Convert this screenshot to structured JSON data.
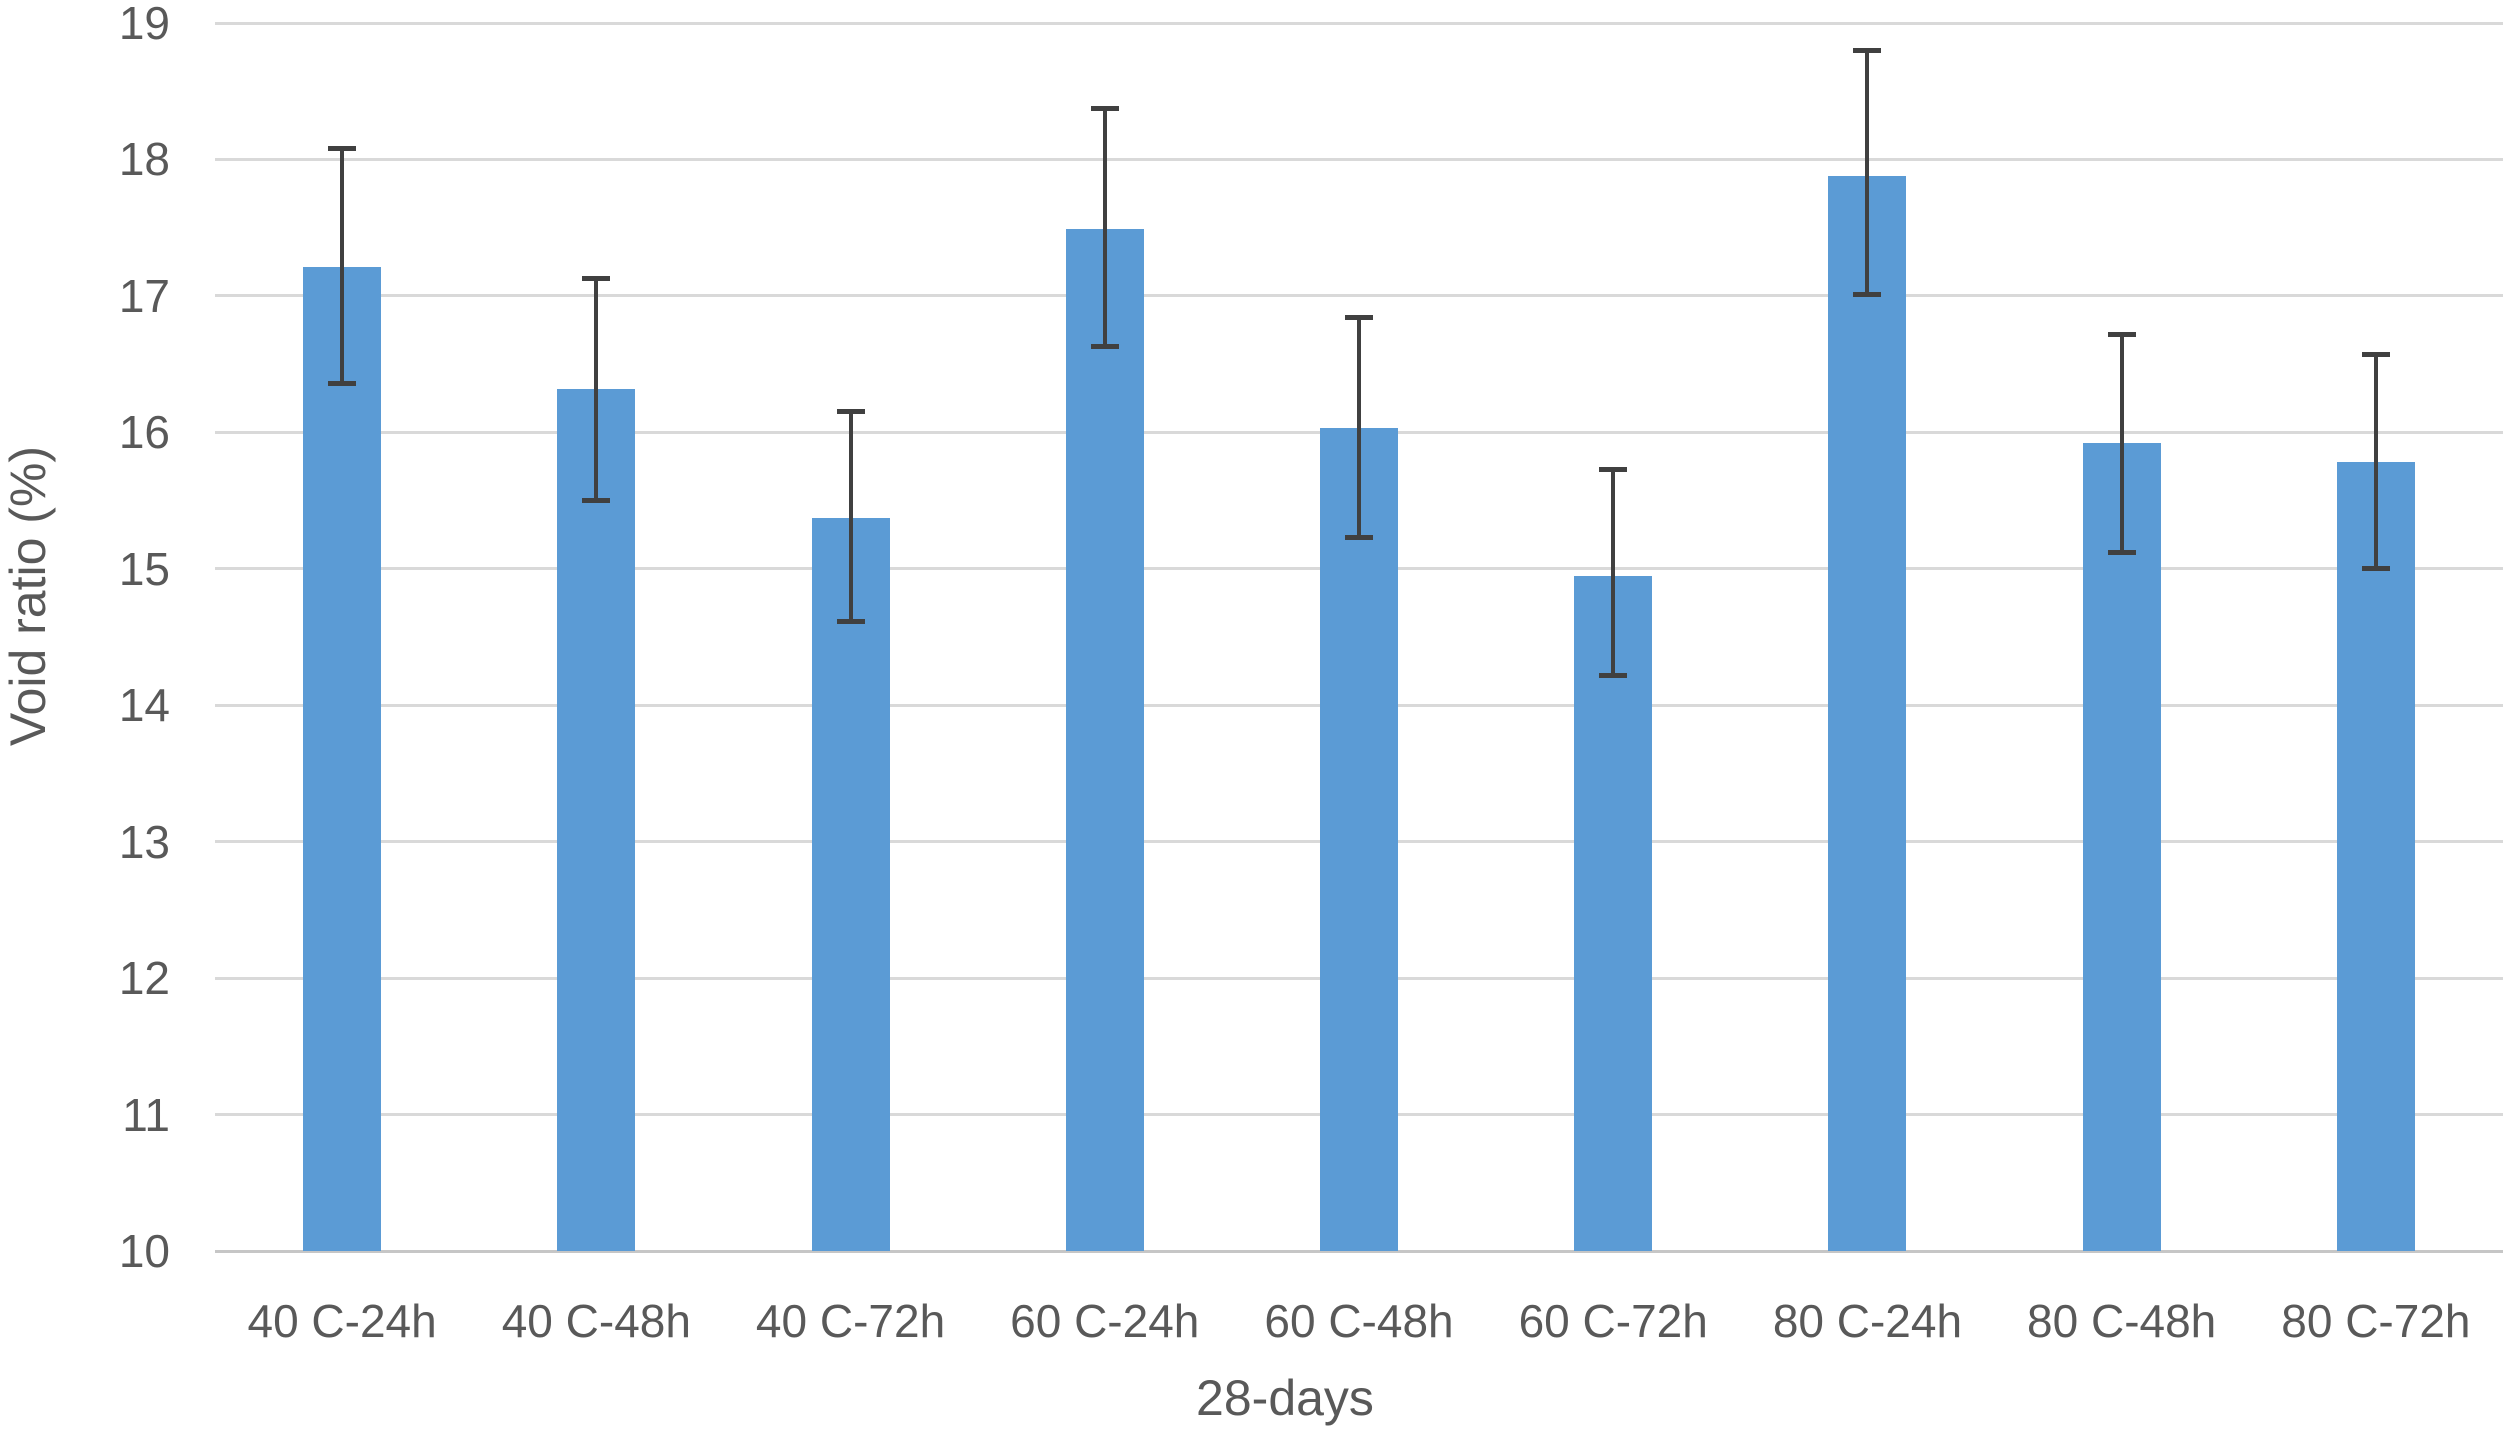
{
  "page": {
    "background": "#FFFFFF",
    "description": "Bar chart with error bars, no title, no legend"
  },
  "chart_data": {
    "type": "bar",
    "title": "",
    "xlabel": "28-days",
    "ylabel": "Void ratio (%)",
    "categories": [
      "40 C-24h",
      "40 C-48h",
      "40 C-72h",
      "60 C-24h",
      "60 C-48h",
      "60 C-72h",
      "80 C-24h",
      "80 C-48h",
      "80 C-72h"
    ],
    "values": [
      17.21,
      16.32,
      15.37,
      17.49,
      16.03,
      14.95,
      17.88,
      15.92,
      15.78
    ],
    "error_bars": {
      "high": [
        18.08,
        17.13,
        16.15,
        18.37,
        16.84,
        15.73,
        18.8,
        16.72,
        16.57
      ],
      "low": [
        16.36,
        15.5,
        14.61,
        16.63,
        15.23,
        14.22,
        17.01,
        15.12,
        15.0
      ]
    },
    "ylim": [
      10,
      19
    ],
    "yticks": [
      10,
      11,
      12,
      13,
      14,
      15,
      16,
      17,
      18,
      19
    ],
    "grid": true,
    "legend": "none",
    "colors": {
      "bar": "#5B9BD5",
      "error_bar": "#404040",
      "gridline": "#D9D9D9",
      "axis_line": "#C6C6C6",
      "text": "#595959"
    }
  }
}
